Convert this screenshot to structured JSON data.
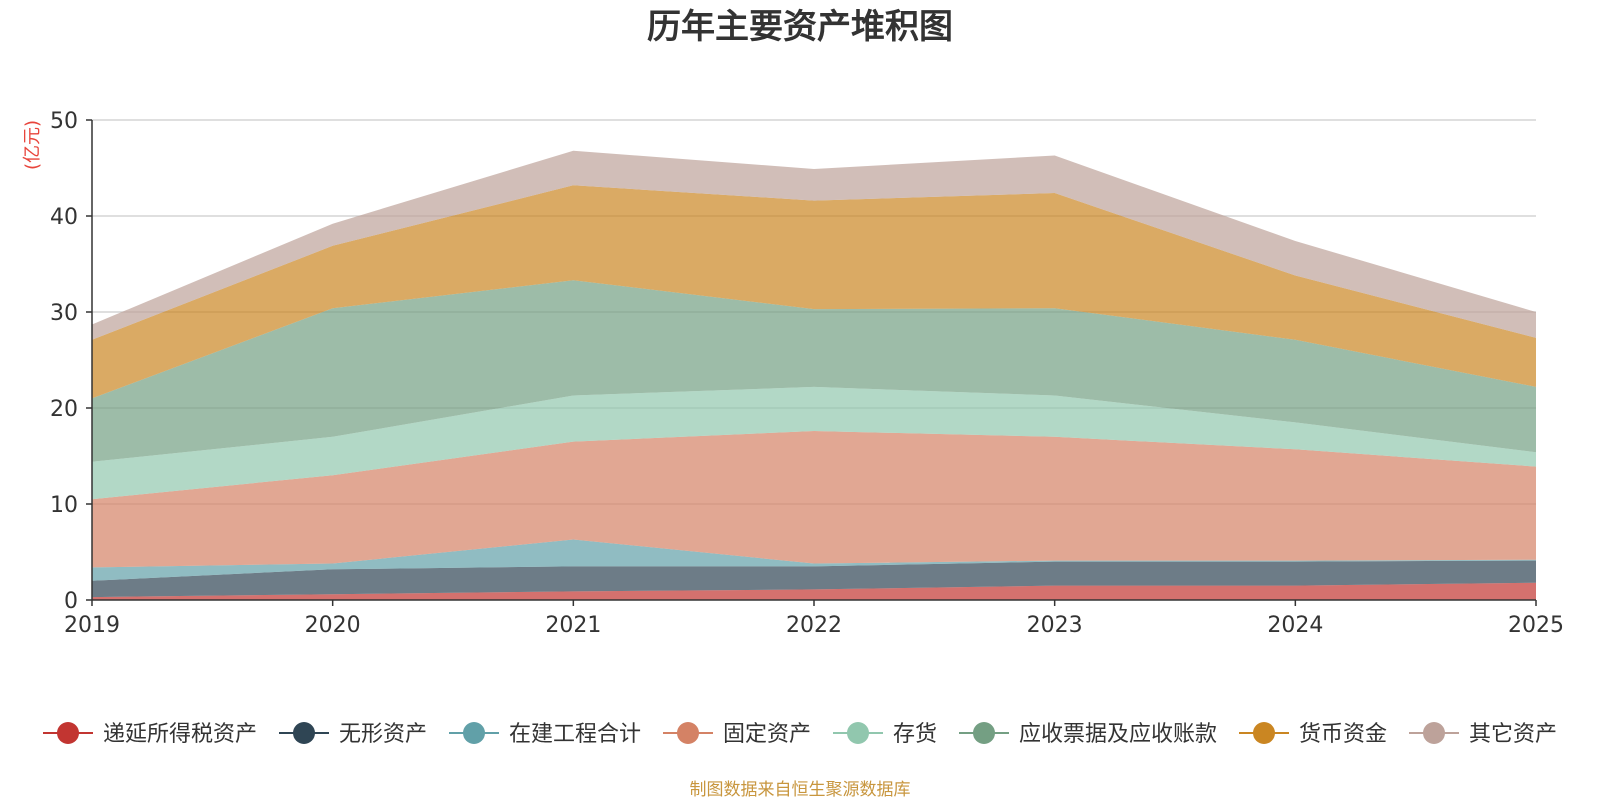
{
  "chart_data": {
    "type": "area",
    "stacked": true,
    "title": "历年主要资产堆积图",
    "ylabel": "(亿元)",
    "xlabel": "",
    "x": [
      "2019",
      "2020",
      "2021",
      "2022",
      "2023",
      "2024",
      "2025"
    ],
    "ylim": [
      0,
      50
    ],
    "yticks": [
      "0",
      "10",
      "20",
      "30",
      "40",
      "50"
    ],
    "grid": true,
    "legend_position": "bottom",
    "series": [
      {
        "name": "递延所得税资产",
        "color": "#c23531",
        "values": [
          0.3,
          0.6,
          0.9,
          1.1,
          1.5,
          1.5,
          1.8
        ]
      },
      {
        "name": "无形资产",
        "color": "#2f4554",
        "values": [
          1.7,
          2.6,
          2.6,
          2.4,
          2.5,
          2.5,
          2.3
        ]
      },
      {
        "name": "在建工程合计",
        "color": "#61a0a8",
        "values": [
          1.4,
          0.6,
          2.8,
          0.3,
          0.1,
          0.1,
          0.1
        ]
      },
      {
        "name": "固定资产",
        "color": "#d48265",
        "values": [
          7.1,
          9.2,
          10.2,
          13.8,
          12.9,
          11.6,
          9.7
        ]
      },
      {
        "name": "存货",
        "color": "#91c7ae",
        "values": [
          3.9,
          4.0,
          4.8,
          4.6,
          4.3,
          2.8,
          1.5
        ]
      },
      {
        "name": "应收票据及应收账款",
        "color": "#749f83",
        "values": [
          6.6,
          13.4,
          12.0,
          8.1,
          9.1,
          8.6,
          6.8
        ]
      },
      {
        "name": "货币资金",
        "color": "#ca8622",
        "values": [
          6.1,
          6.5,
          9.9,
          11.3,
          12.0,
          6.7,
          5.1
        ]
      },
      {
        "name": "其它资产",
        "color": "#bda29a",
        "values": [
          1.6,
          2.3,
          3.6,
          3.3,
          3.9,
          3.6,
          2.7
        ]
      }
    ]
  },
  "footer": {
    "source": "制图数据来自恒生聚源数据库",
    "source_color": "#c8963e"
  },
  "colors": {
    "axis": "#333333",
    "grid": "#cccccc",
    "unit": "#e8453c",
    "title": "#333333"
  }
}
